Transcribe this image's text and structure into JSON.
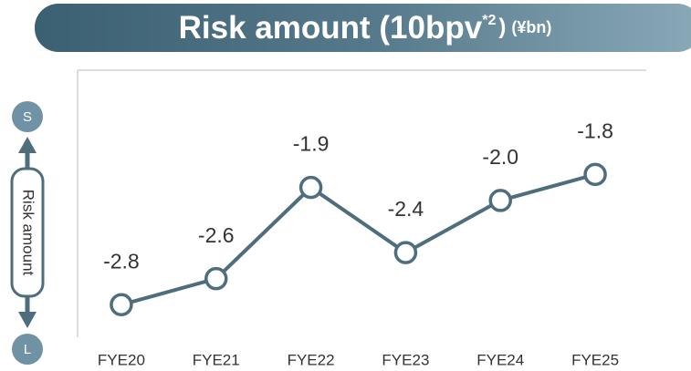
{
  "chart_data": {
    "type": "line",
    "title": "Risk amount (10bpv",
    "title_superscript": "*2",
    "title_close": ")",
    "unit": "(¥bn)",
    "axis_label": "Risk amount",
    "axis_top": "S",
    "axis_bottom": "L",
    "categories": [
      "FYE20",
      "FYE21",
      "FYE22",
      "FYE23",
      "FYE24",
      "FYE25"
    ],
    "values": [
      -2.8,
      -2.6,
      -1.9,
      -2.4,
      -2.0,
      -1.8
    ],
    "value_labels": [
      "-2.8",
      "-2.6",
      "-1.9",
      "-2.4",
      "-2.0",
      "-1.8"
    ],
    "color": "#4e6e7e",
    "ylim": [
      -3.05,
      -1.0
    ]
  }
}
